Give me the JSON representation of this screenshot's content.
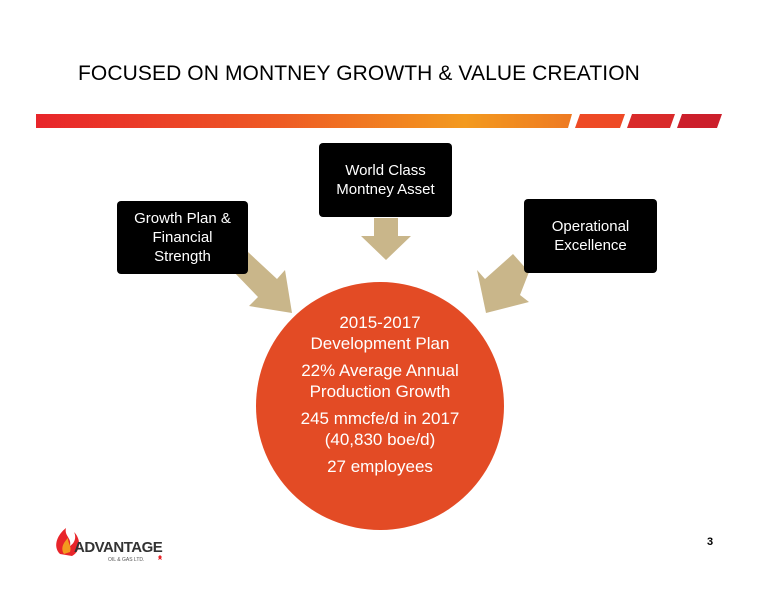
{
  "slide": {
    "title": "FOCUSED ON MONTNEY GROWTH & VALUE CREATION",
    "page_number": "3"
  },
  "boxes": {
    "left": "Growth Plan &\nFinancial\nStrength",
    "top": "World Class\nMontney Asset",
    "right": "Operational\nExcellence"
  },
  "circle": {
    "line1": "2015-2017\nDevelopment Plan",
    "line2": "22% Average Annual\nProduction Growth",
    "line3": "245 mmcfe/d in 2017\n(40,830 boe/d)",
    "line4": "27 employees"
  },
  "logo": {
    "name": "ADVANTAGE",
    "sub": "OIL & GAS LTD."
  },
  "colors": {
    "box": "#000000",
    "circle": "#e34b25",
    "arrow": "#c9b68a",
    "band_start": "#e8252a",
    "band_end": "#f39a1f"
  }
}
